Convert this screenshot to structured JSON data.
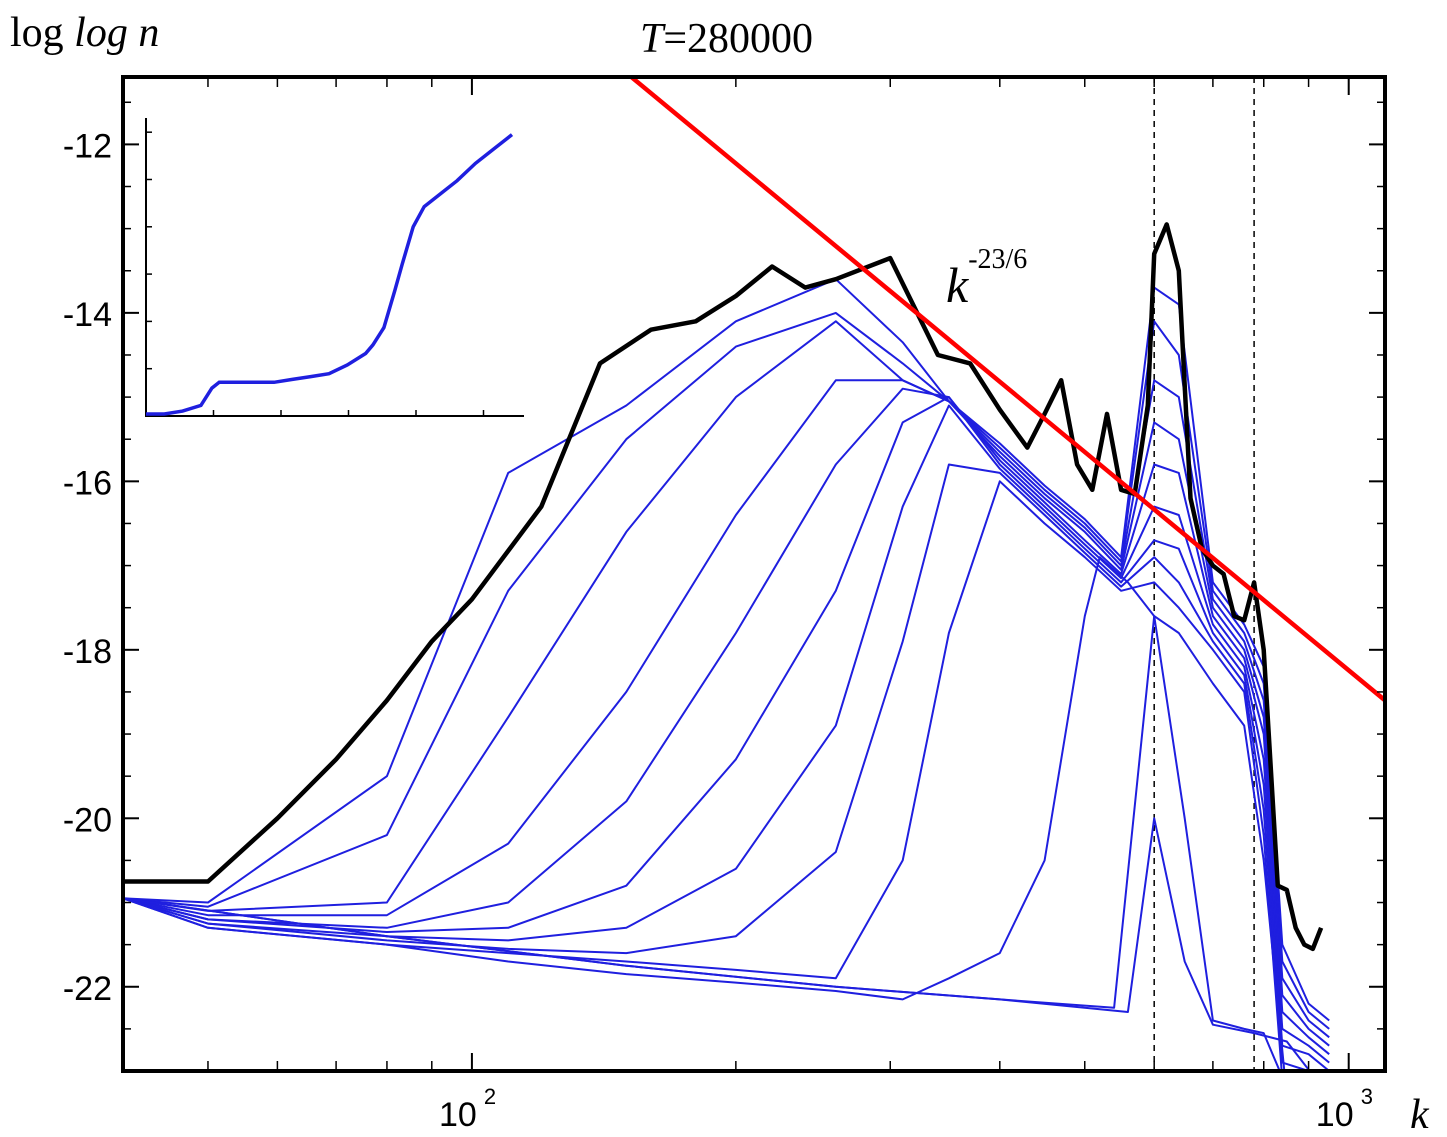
{
  "chart_data": {
    "type": "line",
    "title_prefix": "T",
    "title_value": "=280000",
    "ylabel": "log n",
    "xlabel": "k",
    "x_scale": "log",
    "xlim": [
      40,
      1100
    ],
    "ylim": [
      -23,
      -11.2
    ],
    "x_ticks": [
      {
        "value": 100,
        "base": "10",
        "exp": "2"
      },
      {
        "value": 1000,
        "base": "10",
        "exp": "3"
      }
    ],
    "y_ticks": [
      -12,
      -14,
      -16,
      -18,
      -20,
      -22
    ],
    "y_tick_labels": [
      "-12",
      "-14",
      "-16",
      "-18",
      "-20",
      "-22"
    ],
    "annotation": {
      "base": "k",
      "exp": "-23/6"
    },
    "reference_line": {
      "color": "#ff0000",
      "slope": -3.8333,
      "points": [
        [
          148,
          -11.1
        ],
        [
          1100,
          -18.6
        ]
      ]
    },
    "vlines": [
      600,
      780
    ],
    "colors": {
      "final": "#000000",
      "series": "#1f1fdf",
      "reference": "#ff0000"
    },
    "final_series": {
      "x": [
        40,
        50,
        60,
        70,
        80,
        90,
        100,
        120,
        140,
        160,
        180,
        200,
        220,
        240,
        260,
        300,
        340,
        370,
        400,
        430,
        450,
        470,
        490,
        510,
        530,
        550,
        570,
        590,
        600,
        620,
        640,
        660,
        680,
        700,
        720,
        740,
        760,
        780,
        800,
        830,
        850,
        870,
        890,
        910,
        930
      ],
      "y": [
        -20.75,
        -20.75,
        -20.0,
        -19.3,
        -18.6,
        -17.9,
        -17.4,
        -16.3,
        -14.6,
        -14.2,
        -14.1,
        -13.8,
        -13.45,
        -13.7,
        -13.6,
        -13.35,
        -14.5,
        -14.6,
        -15.15,
        -15.6,
        -15.2,
        -14.8,
        -15.8,
        -16.1,
        -15.2,
        -16.1,
        -16.15,
        -15.1,
        -13.3,
        -12.95,
        -13.5,
        -16.2,
        -16.8,
        -17.0,
        -17.1,
        -17.6,
        -17.65,
        -17.2,
        -18.0,
        -20.8,
        -20.85,
        -21.3,
        -21.5,
        -21.55,
        -21.3
      ]
    },
    "series": [
      {
        "x": [
          40,
          50,
          80,
          110,
          150,
          200,
          260,
          310,
          350,
          400,
          450,
          500,
          550,
          600,
          640,
          700,
          760,
          800,
          840,
          900,
          950
        ],
        "y": [
          -20.95,
          -21.0,
          -19.5,
          -15.9,
          -15.1,
          -14.1,
          -13.6,
          -14.35,
          -15.05,
          -15.55,
          -16.05,
          -16.45,
          -16.9,
          -13.7,
          -13.9,
          -17.2,
          -17.7,
          -18.2,
          -21.5,
          -22.2,
          -22.4
        ]
      },
      {
        "x": [
          40,
          50,
          80,
          110,
          150,
          200,
          260,
          310,
          350,
          400,
          450,
          500,
          550,
          600,
          640,
          700,
          760,
          800,
          840,
          900,
          950
        ],
        "y": [
          -20.95,
          -21.05,
          -20.2,
          -17.3,
          -15.5,
          -14.4,
          -14.0,
          -14.6,
          -15.05,
          -15.6,
          -16.1,
          -16.5,
          -16.95,
          -14.1,
          -14.5,
          -17.3,
          -17.8,
          -18.4,
          -21.7,
          -22.3,
          -22.5
        ]
      },
      {
        "x": [
          40,
          50,
          80,
          110,
          150,
          200,
          260,
          310,
          350,
          400,
          450,
          500,
          550,
          600,
          640,
          700,
          760,
          800,
          840,
          900,
          950
        ],
        "y": [
          -20.95,
          -21.1,
          -21.0,
          -18.8,
          -16.6,
          -15.0,
          -14.1,
          -14.8,
          -15.05,
          -15.65,
          -16.15,
          -16.55,
          -17.0,
          -14.8,
          -15.0,
          -17.4,
          -17.9,
          -18.6,
          -21.9,
          -22.4,
          -22.6
        ]
      },
      {
        "x": [
          40,
          50,
          80,
          110,
          150,
          200,
          260,
          310,
          350,
          400,
          450,
          500,
          550,
          600,
          640,
          700,
          760,
          800,
          840,
          900,
          950
        ],
        "y": [
          -20.95,
          -21.15,
          -21.15,
          -20.3,
          -18.5,
          -16.4,
          -14.8,
          -14.8,
          -15.05,
          -15.7,
          -16.2,
          -16.6,
          -17.05,
          -15.3,
          -15.5,
          -17.5,
          -18.0,
          -18.8,
          -22.1,
          -22.5,
          -22.7
        ]
      },
      {
        "x": [
          40,
          50,
          80,
          110,
          150,
          200,
          260,
          310,
          350,
          400,
          450,
          500,
          550,
          600,
          640,
          700,
          760,
          800,
          840,
          900,
          950
        ],
        "y": [
          -20.95,
          -21.2,
          -21.3,
          -21.0,
          -19.8,
          -17.8,
          -15.8,
          -14.9,
          -15.0,
          -15.75,
          -16.25,
          -16.7,
          -17.1,
          -15.8,
          -15.9,
          -17.6,
          -18.1,
          -19.0,
          -22.3,
          -22.6,
          -22.8
        ]
      },
      {
        "x": [
          40,
          50,
          80,
          110,
          150,
          200,
          260,
          310,
          350,
          400,
          450,
          500,
          550,
          600,
          640,
          700,
          760,
          800,
          840,
          900,
          950
        ],
        "y": [
          -20.95,
          -21.2,
          -21.35,
          -21.3,
          -20.8,
          -19.3,
          -17.3,
          -15.3,
          -15.0,
          -15.8,
          -16.3,
          -16.75,
          -17.15,
          -16.3,
          -16.4,
          -17.7,
          -18.2,
          -19.3,
          -22.5,
          -22.7,
          -22.9
        ]
      },
      {
        "x": [
          40,
          50,
          80,
          110,
          150,
          200,
          260,
          310,
          350,
          400,
          450,
          500,
          550,
          600,
          640,
          700,
          760,
          800,
          840,
          900,
          950
        ],
        "y": [
          -20.95,
          -21.25,
          -21.4,
          -21.45,
          -21.3,
          -20.6,
          -18.9,
          -16.3,
          -15.1,
          -15.85,
          -16.35,
          -16.8,
          -17.2,
          -16.7,
          -16.8,
          -17.8,
          -18.3,
          -19.6,
          -22.7,
          -22.8,
          -23.0
        ]
      },
      {
        "x": [
          40,
          50,
          80,
          110,
          150,
          200,
          260,
          310,
          350,
          400,
          450,
          500,
          550,
          600,
          640,
          700,
          760,
          800,
          840,
          900,
          950
        ],
        "y": [
          -20.95,
          -21.25,
          -21.45,
          -21.55,
          -21.6,
          -21.4,
          -20.4,
          -17.9,
          -15.8,
          -15.9,
          -16.4,
          -16.85,
          -17.25,
          -16.9,
          -17.2,
          -17.9,
          -18.4,
          -19.9,
          -22.9,
          -23.0,
          -23.1
        ]
      },
      {
        "x": [
          40,
          50,
          80,
          110,
          150,
          200,
          260,
          310,
          350,
          400,
          450,
          500,
          550,
          600,
          640,
          700,
          760,
          800,
          840,
          900,
          950
        ],
        "y": [
          -20.95,
          -21.3,
          -21.5,
          -21.6,
          -21.7,
          -21.8,
          -21.9,
          -20.5,
          -17.8,
          -16.0,
          -16.5,
          -16.9,
          -17.3,
          -17.2,
          -17.5,
          -18.0,
          -18.5,
          -20.2,
          -23.1,
          -23.2,
          -23.2
        ]
      },
      {
        "x": [
          40,
          50,
          80,
          110,
          150,
          200,
          260,
          310,
          350,
          400,
          450,
          500,
          520,
          560,
          600,
          640,
          700,
          760,
          800,
          850,
          950
        ],
        "y": [
          -20.95,
          -21.3,
          -21.5,
          -21.7,
          -21.85,
          -21.95,
          -22.05,
          -22.15,
          -21.9,
          -21.6,
          -20.5,
          -17.6,
          -16.9,
          -17.2,
          -17.6,
          -17.8,
          -18.4,
          -18.9,
          -20.5,
          -23.3,
          -23.3
        ]
      },
      {
        "x": [
          40,
          80,
          150,
          260,
          400,
          540,
          600,
          650,
          700,
          760,
          800,
          850,
          950
        ],
        "y": [
          -20.95,
          -21.4,
          -21.75,
          -22.0,
          -22.15,
          -22.25,
          -17.6,
          -20.0,
          -22.4,
          -22.5,
          -22.55,
          -23.2,
          -23.3
        ]
      },
      {
        "x": [
          40,
          80,
          150,
          260,
          400,
          560,
          600,
          650,
          700,
          780,
          850,
          950
        ],
        "y": [
          -20.95,
          -21.4,
          -21.75,
          -22.0,
          -22.15,
          -22.3,
          -20.0,
          -21.7,
          -22.45,
          -22.55,
          -22.65,
          -23.3
        ]
      }
    ],
    "inset": {
      "x": [
        0,
        5,
        10,
        15,
        18,
        20,
        22,
        25,
        30,
        35,
        40,
        45,
        50,
        55,
        60,
        62,
        65,
        68,
        70,
        73,
        76,
        80,
        85,
        90,
        95,
        98,
        100
      ],
      "y": [
        0.0,
        0.0,
        0.01,
        0.03,
        0.09,
        0.11,
        0.11,
        0.11,
        0.11,
        0.11,
        0.12,
        0.13,
        0.14,
        0.17,
        0.21,
        0.24,
        0.3,
        0.43,
        0.52,
        0.65,
        0.72,
        0.76,
        0.81,
        0.87,
        0.92,
        0.95,
        0.97
      ]
    }
  }
}
